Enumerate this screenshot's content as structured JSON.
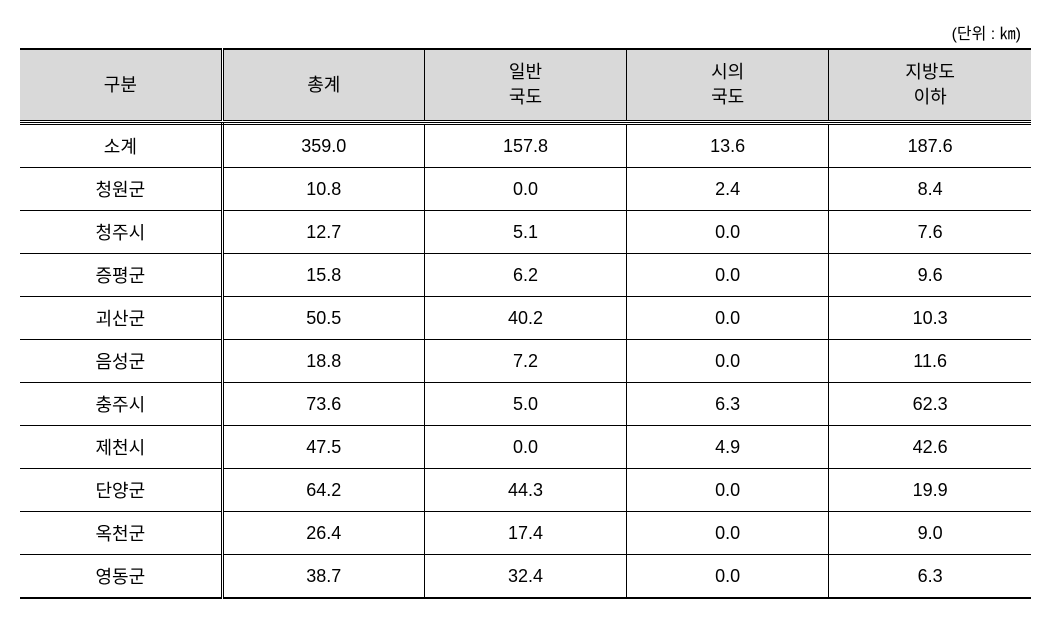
{
  "unit_label": "(단위 : ㎞)",
  "table": {
    "columns": [
      {
        "label": "구분",
        "lines": [
          "구분"
        ]
      },
      {
        "label": "총계",
        "lines": [
          "총계"
        ]
      },
      {
        "label": "일반 국도",
        "lines": [
          "일반",
          "국도"
        ]
      },
      {
        "label": "시의 국도",
        "lines": [
          "시의",
          "국도"
        ]
      },
      {
        "label": "지방도 이하",
        "lines": [
          "지방도",
          "이하"
        ]
      }
    ],
    "rows": [
      {
        "label": "소계",
        "values": [
          "359.0",
          "157.8",
          "13.6",
          "187.6"
        ]
      },
      {
        "label": "청원군",
        "values": [
          "10.8",
          "0.0",
          "2.4",
          "8.4"
        ]
      },
      {
        "label": "청주시",
        "values": [
          "12.7",
          "5.1",
          "0.0",
          "7.6"
        ]
      },
      {
        "label": "증평군",
        "values": [
          "15.8",
          "6.2",
          "0.0",
          "9.6"
        ]
      },
      {
        "label": "괴산군",
        "values": [
          "50.5",
          "40.2",
          "0.0",
          "10.3"
        ]
      },
      {
        "label": "음성군",
        "values": [
          "18.8",
          "7.2",
          "0.0",
          "11.6"
        ]
      },
      {
        "label": "충주시",
        "values": [
          "73.6",
          "5.0",
          "6.3",
          "62.3"
        ]
      },
      {
        "label": "제천시",
        "values": [
          "47.5",
          "0.0",
          "4.9",
          "42.6"
        ]
      },
      {
        "label": "단양군",
        "values": [
          "64.2",
          "44.3",
          "0.0",
          "19.9"
        ]
      },
      {
        "label": "옥천군",
        "values": [
          "26.4",
          "17.4",
          "0.0",
          "9.0"
        ]
      },
      {
        "label": "영동군",
        "values": [
          "38.7",
          "32.4",
          "0.0",
          "6.3"
        ]
      }
    ],
    "header_bg": "#d9d9d9",
    "border_color": "#000000",
    "font_size": 18,
    "unit_font_size": 16
  }
}
